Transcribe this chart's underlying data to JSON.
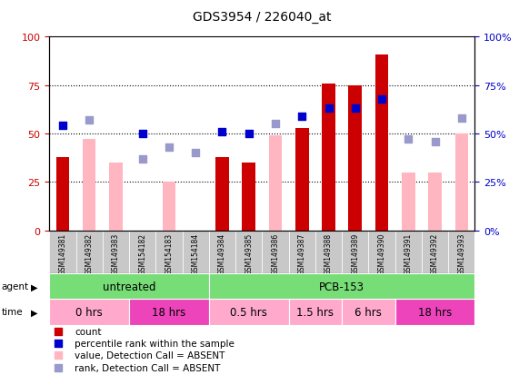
{
  "title": "GDS3954 / 226040_at",
  "samples": [
    "GSM149381",
    "GSM149382",
    "GSM149383",
    "GSM154182",
    "GSM154183",
    "GSM154184",
    "GSM149384",
    "GSM149385",
    "GSM149386",
    "GSM149387",
    "GSM149388",
    "GSM149389",
    "GSM149390",
    "GSM149391",
    "GSM149392",
    "GSM149393"
  ],
  "count_values": [
    38,
    0,
    0,
    0,
    0,
    0,
    38,
    35,
    0,
    53,
    76,
    75,
    91,
    0,
    0,
    0
  ],
  "count_absent": [
    0,
    47,
    35,
    0,
    25,
    0,
    0,
    0,
    49,
    0,
    0,
    0,
    0,
    30,
    30,
    50
  ],
  "rank_present": [
    54,
    0,
    0,
    50,
    0,
    0,
    51,
    50,
    0,
    59,
    63,
    63,
    68,
    0,
    0,
    0
  ],
  "rank_absent": [
    0,
    57,
    0,
    37,
    43,
    40,
    0,
    0,
    55,
    0,
    0,
    0,
    0,
    47,
    46,
    58
  ],
  "agent_groups": [
    {
      "label": "untreated",
      "start": 0,
      "end": 6,
      "color": "#77DD77"
    },
    {
      "label": "PCB-153",
      "start": 6,
      "end": 16,
      "color": "#77DD77"
    }
  ],
  "time_groups": [
    {
      "label": "0 hrs",
      "start": 0,
      "end": 3,
      "color": "#FFAACC"
    },
    {
      "label": "18 hrs",
      "start": 3,
      "end": 6,
      "color": "#EE44BB"
    },
    {
      "label": "0.5 hrs",
      "start": 6,
      "end": 9,
      "color": "#FFAACC"
    },
    {
      "label": "1.5 hrs",
      "start": 9,
      "end": 11,
      "color": "#FFAACC"
    },
    {
      "label": "6 hrs",
      "start": 11,
      "end": 13,
      "color": "#FFAACC"
    },
    {
      "label": "18 hrs",
      "start": 13,
      "end": 16,
      "color": "#EE44BB"
    }
  ],
  "ylim": [
    0,
    100
  ],
  "yticks": [
    0,
    25,
    50,
    75,
    100
  ],
  "bar_color_present": "#CC0000",
  "bar_color_absent": "#FFB6C1",
  "rank_color_present": "#0000CC",
  "rank_color_absent": "#9999CC",
  "bg_color": "#FFFFFF",
  "axis_label_color_left": "#CC0000",
  "axis_label_color_right": "#0000CC",
  "legend_items": [
    {
      "color": "#CC0000",
      "label": "count"
    },
    {
      "color": "#0000CC",
      "label": "percentile rank within the sample"
    },
    {
      "color": "#FFB6C1",
      "label": "value, Detection Call = ABSENT"
    },
    {
      "color": "#9999CC",
      "label": "rank, Detection Call = ABSENT"
    }
  ],
  "fig_width": 5.71,
  "fig_height": 4.14,
  "dpi": 100
}
